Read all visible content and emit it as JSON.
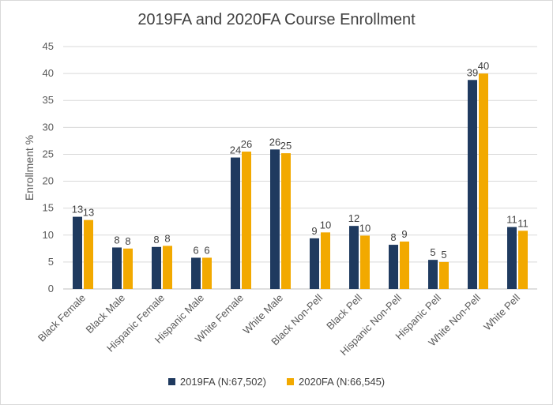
{
  "chart_data": {
    "type": "bar",
    "title": "2019FA and 2020FA Course Enrollment",
    "xlabel": "",
    "ylabel": "Enrollment %",
    "ylim": [
      0,
      45
    ],
    "yticks": [
      0,
      5,
      10,
      15,
      20,
      25,
      30,
      35,
      40,
      45
    ],
    "grid": true,
    "legend_position": "bottom",
    "categories": [
      "Black Female",
      "Black Male",
      "Hispanic Female",
      "Hispanic Male",
      "White Female",
      "White Male",
      "Black Non-Pell",
      "Black Pell",
      "Hispanic Non-Pell",
      "Hispanic Pell",
      "White Non-Pell",
      "White Pell"
    ],
    "series": [
      {
        "name": "2019FA (N:67,502)",
        "color": "#1f3a5f",
        "values": [
          13.4,
          7.7,
          7.8,
          5.8,
          24.4,
          25.9,
          9.4,
          11.7,
          8.2,
          5.4,
          38.8,
          11.5
        ],
        "labels": [
          "13",
          "8",
          "8",
          "6",
          "24",
          "26",
          "9",
          "12",
          "8",
          "5",
          "39",
          "11"
        ]
      },
      {
        "name": "2020FA (N:66,545)",
        "color": "#f2a900",
        "values": [
          12.8,
          7.5,
          8.0,
          5.8,
          25.5,
          25.2,
          10.5,
          9.9,
          8.8,
          5.0,
          40.0,
          10.8
        ],
        "labels": [
          "13",
          "8",
          "8",
          "6",
          "26",
          "25",
          "10",
          "10",
          "9",
          "5",
          "40",
          "11"
        ]
      }
    ]
  }
}
